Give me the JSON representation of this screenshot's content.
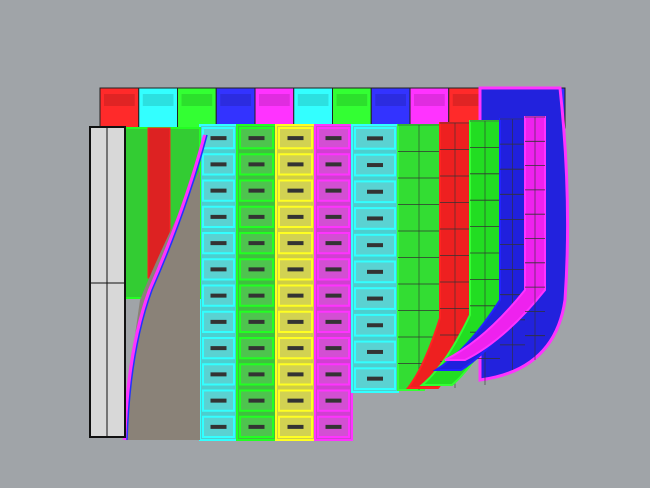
{
  "viewport": {
    "background": "#a0a4a8"
  },
  "back_row_colors": [
    "#ff2a2a",
    "#33ffff",
    "#33ff33",
    "#3333ff",
    "#ff33ff",
    "#33ffff",
    "#33ff33",
    "#3333ff",
    "#ff33ff",
    "#ff2a2a",
    "#33ff33",
    "#3333ff"
  ],
  "front_columns": [
    {
      "color": "#33ffff",
      "fill": "#4ccfcf"
    },
    {
      "color": "#22ff22",
      "fill": "#3fbf3f"
    },
    {
      "color": "#ffff22",
      "fill": "#cfcf44"
    },
    {
      "color": "#ff33ff",
      "fill": "#d040d0"
    },
    {
      "color": "#33ffff",
      "fill": "#4ccfcf"
    },
    {
      "color": "#33ff33",
      "fill": "#33dd33"
    },
    {
      "color": "#ff2222",
      "fill": "#ee2020"
    },
    {
      "color": "#33ff33",
      "fill": "#22dd22"
    },
    {
      "color": "#2222ff",
      "fill": "#2020dd"
    },
    {
      "color": "#ff33ff",
      "fill": "#ee22ee"
    }
  ],
  "left_panel_color": "#d8d8d8",
  "curve_fill_color": "#8a8278"
}
